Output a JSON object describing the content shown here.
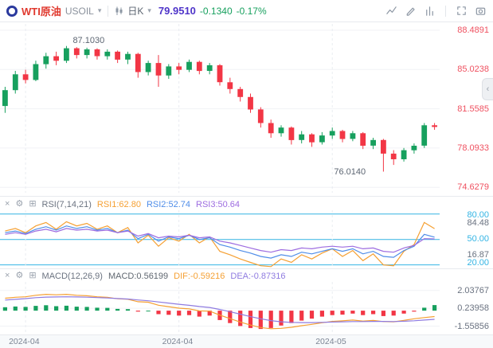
{
  "toolbar": {
    "symbol_name": "WTI原油",
    "symbol_code": "USOIL",
    "timeframe": "日K",
    "price": "79.9510",
    "change": "-0.1340",
    "change_pct": "-0.17%"
  },
  "colors": {
    "symbol": "#e03a2f",
    "price": "#4f35c9",
    "change": "#17a05e",
    "up": "#17a05e",
    "down": "#f23645",
    "axis_price": "#ef5160",
    "band": "#33b4e4",
    "rsi1": "#f5a033",
    "rsi2": "#4f8de8",
    "rsi3": "#9d6ce0",
    "macd_text": "#5f6770",
    "dif": "#f5a033",
    "dea": "#8f7be0"
  },
  "main_axis_labels": [
    "88.4891",
    "85.0238",
    "81.5585",
    "78.0933",
    "74.6279"
  ],
  "rsi_panel": {
    "title": "RSI(7,14,21)",
    "values": [
      {
        "text": "RSI1:62.80"
      },
      {
        "text": "RSI2:52.74"
      },
      {
        "text": "RSI3:50.64"
      }
    ],
    "axis_labels": [
      {
        "text": "80.00",
        "band": true
      },
      {
        "text": "84.48",
        "band": false
      },
      {
        "text": "50.00",
        "band": true
      },
      {
        "text": "16.87",
        "band": false
      },
      {
        "text": "20.00",
        "band": true
      }
    ]
  },
  "macd_panel": {
    "title": "MACD(12,26,9)",
    "values": [
      {
        "text": "MACD:0.56199"
      },
      {
        "text": "DIF:-0.59216"
      },
      {
        "text": "DEA:-0.87316"
      }
    ],
    "axis_labels": [
      "2.03767",
      "0.23958",
      "-1.55856"
    ]
  },
  "time_axis": [
    "2024-04",
    "2024-04",
    "2024-05"
  ],
  "collapse_tab": "‹",
  "chart_data": [
    {
      "type": "candlestick",
      "title": "WTI原油 USOIL 日K",
      "ylim": [
        74.15,
        89.05
      ],
      "axis_values": [
        88.4891,
        85.0238,
        81.5585,
        78.0933,
        74.6279
      ],
      "tick_indices": [
        2,
        17,
        32
      ],
      "x_tick_labels": [
        "2024-04",
        "2024-04",
        "2024-05"
      ],
      "annotations": {
        "high": "87.1030",
        "low": "76.0140",
        "high_index": 6,
        "low_index": 37
      },
      "candles": [
        [
          81.8,
          83.5,
          81.2,
          83.2
        ],
        [
          83.2,
          84.9,
          82.9,
          84.6
        ],
        [
          84.6,
          85.0,
          83.8,
          84.1
        ],
        [
          84.1,
          85.8,
          84.0,
          85.5
        ],
        [
          85.5,
          86.5,
          85.1,
          86.2
        ],
        [
          86.2,
          86.6,
          85.4,
          85.8
        ],
        [
          85.8,
          87.103,
          85.6,
          86.9
        ],
        [
          86.9,
          87.0,
          86.0,
          86.3
        ],
        [
          86.3,
          86.95,
          86.0,
          86.8
        ],
        [
          86.8,
          86.9,
          85.9,
          86.2
        ],
        [
          86.2,
          86.8,
          85.9,
          86.6
        ],
        [
          86.6,
          86.7,
          85.6,
          85.9
        ],
        [
          85.9,
          86.6,
          85.5,
          86.4
        ],
        [
          86.4,
          86.5,
          84.3,
          84.8
        ],
        [
          84.8,
          85.8,
          84.5,
          85.6
        ],
        [
          85.6,
          86.3,
          83.5,
          84.5
        ],
        [
          84.5,
          85.5,
          84.2,
          85.3
        ],
        [
          85.3,
          85.6,
          84.6,
          85.0
        ],
        [
          85.0,
          85.9,
          84.8,
          85.7
        ],
        [
          85.7,
          85.8,
          84.6,
          84.9
        ],
        [
          84.9,
          85.6,
          84.6,
          85.4
        ],
        [
          85.4,
          85.5,
          83.6,
          83.9
        ],
        [
          83.9,
          84.3,
          82.9,
          83.3
        ],
        [
          83.3,
          83.5,
          82.2,
          82.6
        ],
        [
          82.6,
          82.9,
          81.2,
          81.5
        ],
        [
          81.5,
          81.7,
          79.9,
          80.3
        ],
        [
          80.3,
          80.6,
          79.0,
          79.4
        ],
        [
          79.4,
          80.1,
          79.1,
          79.9
        ],
        [
          79.9,
          80.0,
          78.4,
          78.8
        ],
        [
          78.8,
          79.6,
          78.5,
          79.3
        ],
        [
          79.3,
          79.4,
          78.2,
          78.6
        ],
        [
          78.6,
          79.5,
          78.4,
          79.2
        ],
        [
          79.2,
          79.9,
          78.9,
          79.6
        ],
        [
          79.6,
          79.7,
          78.6,
          78.9
        ],
        [
          78.9,
          79.6,
          78.7,
          79.4
        ],
        [
          79.4,
          79.5,
          78.0,
          78.3
        ],
        [
          78.3,
          79.0,
          78.0,
          78.8
        ],
        [
          78.8,
          78.9,
          76.014,
          77.6
        ],
        [
          77.6,
          77.9,
          76.6,
          77.1
        ],
        [
          77.1,
          78.1,
          76.9,
          77.9
        ],
        [
          77.9,
          78.5,
          77.6,
          78.3
        ],
        [
          78.3,
          80.3,
          78.1,
          80.1
        ],
        [
          80.1,
          80.3,
          79.7,
          79.951
        ]
      ]
    },
    {
      "type": "line",
      "name": "RSI",
      "ylim": [
        16.87,
        84.48
      ],
      "bands": [
        80,
        50,
        20
      ],
      "series": [
        {
          "name": "RSI1",
          "color_key": "rsi1",
          "values": [
            60,
            63,
            58,
            66,
            70,
            62,
            71,
            66,
            69,
            62,
            66,
            58,
            64,
            46,
            55,
            42,
            52,
            48,
            56,
            46,
            53,
            36,
            32,
            27,
            23,
            19,
            18,
            27,
            23,
            32,
            27,
            34,
            39,
            30,
            37,
            25,
            33,
            20,
            19,
            36,
            44,
            70,
            62.8
          ]
        },
        {
          "name": "RSI2",
          "color_key": "rsi2",
          "values": [
            58,
            60,
            57,
            62,
            65,
            61,
            66,
            63,
            65,
            61,
            63,
            58,
            61,
            51,
            56,
            48,
            53,
            51,
            55,
            50,
            52,
            44,
            41,
            37,
            34,
            30,
            28,
            32,
            30,
            35,
            33,
            36,
            39,
            36,
            39,
            33,
            36,
            30,
            29,
            37,
            42,
            56,
            52.74
          ]
        },
        {
          "name": "RSI3",
          "color_key": "rsi3",
          "values": [
            56,
            58,
            56,
            60,
            62,
            59,
            63,
            61,
            62,
            60,
            61,
            58,
            60,
            54,
            57,
            52,
            54,
            53,
            55,
            52,
            53,
            48,
            46,
            43,
            40,
            37,
            35,
            38,
            37,
            40,
            39,
            41,
            42,
            41,
            42,
            39,
            40,
            36,
            35,
            40,
            43,
            51,
            50.64
          ]
        }
      ]
    },
    {
      "type": "bar",
      "name": "MACD",
      "ylim": [
        -2.4,
        2.9
      ],
      "gridlines": [
        2.03767,
        0.23958,
        -1.55856
      ],
      "histogram": [
        0.35,
        0.42,
        0.38,
        0.48,
        0.55,
        0.45,
        0.5,
        0.4,
        0.38,
        0.3,
        0.28,
        0.18,
        0.15,
        -0.1,
        0.0,
        -0.35,
        -0.42,
        -0.5,
        -0.45,
        -0.6,
        -0.5,
        -0.95,
        -1.25,
        -1.55,
        -1.75,
        -1.85,
        -1.75,
        -1.5,
        -1.25,
        -1.0,
        -0.8,
        -0.6,
        -0.45,
        -0.4,
        -0.3,
        -0.45,
        -0.35,
        -0.55,
        -0.5,
        -0.3,
        -0.1,
        0.3,
        0.56199
      ],
      "series": [
        {
          "name": "DIF",
          "color_key": "dif",
          "values": [
            1.25,
            1.35,
            1.4,
            1.55,
            1.65,
            1.6,
            1.65,
            1.55,
            1.5,
            1.4,
            1.35,
            1.2,
            1.15,
            0.9,
            0.85,
            0.55,
            0.4,
            0.25,
            0.18,
            -0.02,
            -0.05,
            -0.45,
            -0.8,
            -1.15,
            -1.45,
            -1.7,
            -1.82,
            -1.78,
            -1.68,
            -1.52,
            -1.38,
            -1.22,
            -1.08,
            -1.02,
            -0.95,
            -1.05,
            -0.98,
            -1.1,
            -1.12,
            -0.98,
            -0.82,
            -0.7,
            -0.59216
          ]
        },
        {
          "name": "DEA",
          "color_key": "dea",
          "values": [
            1.07,
            1.14,
            1.21,
            1.31,
            1.37,
            1.38,
            1.4,
            1.38,
            1.36,
            1.32,
            1.28,
            1.22,
            1.17,
            1.08,
            1.0,
            0.88,
            0.76,
            0.64,
            0.54,
            0.42,
            0.32,
            0.12,
            -0.1,
            -0.35,
            -0.6,
            -0.82,
            -1.0,
            -1.12,
            -1.18,
            -1.2,
            -1.2,
            -1.18,
            -1.15,
            -1.12,
            -1.1,
            -1.1,
            -1.08,
            -1.08,
            -1.1,
            -1.07,
            -1.02,
            -0.95,
            -0.87316
          ]
        }
      ]
    }
  ]
}
